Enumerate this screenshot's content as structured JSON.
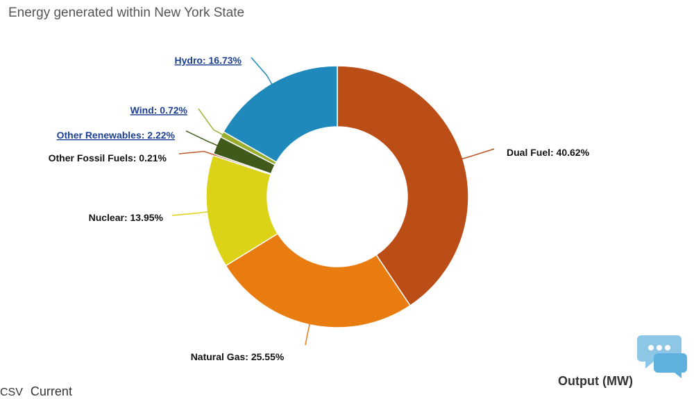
{
  "title": "Energy generated within New York State",
  "footer": {
    "csv_label": "CSV",
    "current_label": "Current"
  },
  "output_label": "Output (MW)",
  "chat_icon": "chat-bubbles-icon",
  "chart_data": {
    "type": "pie",
    "subtype": "donut",
    "title": "Energy generated within New York State",
    "legend": "none",
    "slices": [
      {
        "name": "Dual Fuel",
        "value": 40.62,
        "label": "Dual Fuel: 40.62%",
        "color": "#bb4d17",
        "link": false
      },
      {
        "name": "Natural Gas",
        "value": 25.55,
        "label": "Natural Gas: 25.55%",
        "color": "#e97c10",
        "link": false
      },
      {
        "name": "Nuclear",
        "value": 13.95,
        "label": "Nuclear: 13.95%",
        "color": "#dcd318",
        "link": false
      },
      {
        "name": "Other Fossil Fuels",
        "value": 0.21,
        "label": "Other Fossil Fuels: 0.21%",
        "color": "#c2572b",
        "link": false
      },
      {
        "name": "Other Renewables",
        "value": 2.22,
        "label": "Other Renewables: 2.22%",
        "color": "#3f5a1b",
        "link": true
      },
      {
        "name": "Wind",
        "value": 0.72,
        "label": "Wind: 0.72%",
        "color": "#9bae2f",
        "link": true
      },
      {
        "name": "Hydro",
        "value": 16.73,
        "label": "Hydro: 16.73%",
        "color": "#1f89bc",
        "link": true
      }
    ]
  }
}
